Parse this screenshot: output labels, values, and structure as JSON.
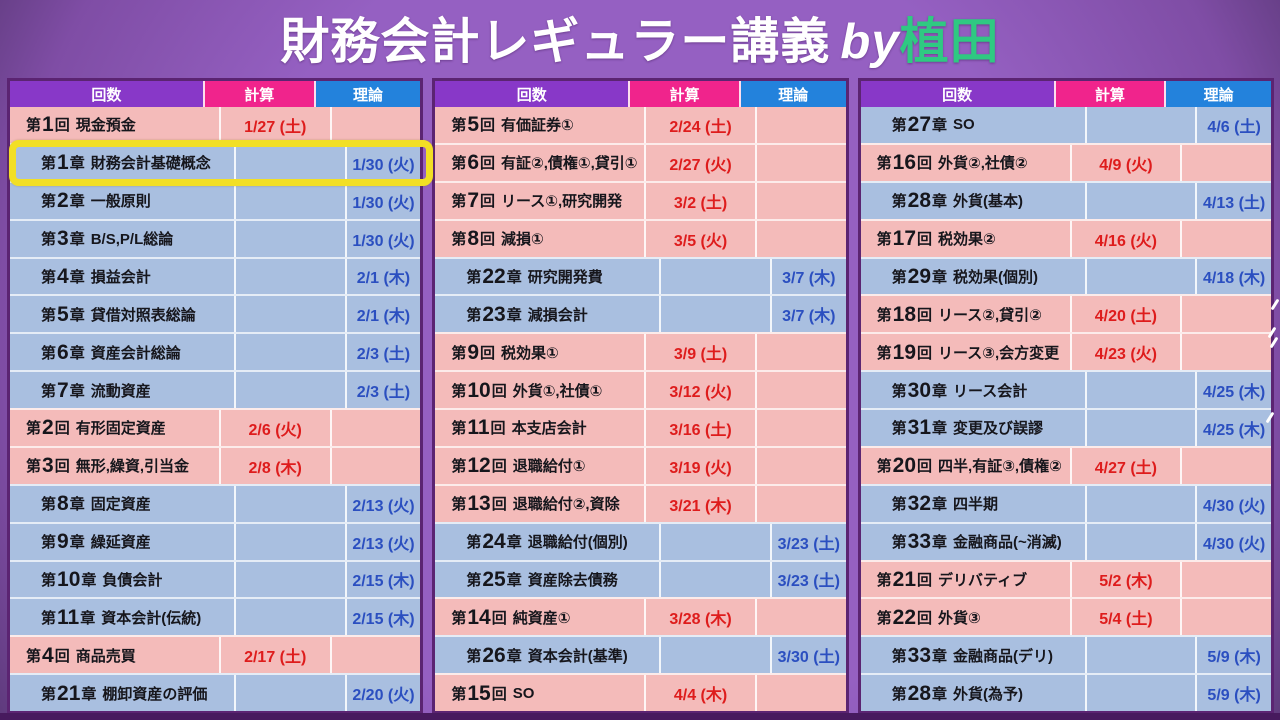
{
  "title": {
    "main": "財務会計レギュラー講義",
    "by": "by",
    "accent": "植田",
    "accent_color": "#2FC982"
  },
  "columns": {
    "session": "回数",
    "calc": "計算",
    "theory": "理論"
  },
  "colors": {
    "header_session_bg": "#8838C8",
    "header_calc_bg": "#F0248C",
    "header_theory_bg": "#2382DC",
    "row_calc_bg": "#F4BBBA",
    "row_theory_bg": "#A9BFE0",
    "calc_date_text": "#DE1C1C",
    "theory_date_text": "#2B4FC0",
    "highlight_border": "#F2DF25",
    "table_border": "#5B2472",
    "background": "#9560C2"
  },
  "highlight": {
    "table": 0,
    "row": 1
  },
  "tables": [
    {
      "rows": [
        {
          "label": "第1回 現金預金",
          "calc": "1/27 (土)",
          "theory": ""
        },
        {
          "label": "第1章 財務会計基礎概念",
          "calc": "",
          "theory": "1/30 (火)"
        },
        {
          "label": "第2章 一般原則",
          "calc": "",
          "theory": "1/30 (火)"
        },
        {
          "label": "第3章 B/S,P/L総論",
          "calc": "",
          "theory": "1/30 (火)"
        },
        {
          "label": "第4章 損益会計",
          "calc": "",
          "theory": "2/1 (木)"
        },
        {
          "label": "第5章 貸借対照表総論",
          "calc": "",
          "theory": "2/1 (木)"
        },
        {
          "label": "第6章 資産会計総論",
          "calc": "",
          "theory": "2/3 (土)"
        },
        {
          "label": "第7章 流動資産",
          "calc": "",
          "theory": "2/3 (土)"
        },
        {
          "label": "第2回 有形固定資産",
          "calc": "2/6 (火)",
          "theory": ""
        },
        {
          "label": "第3回 無形,繰資,引当金",
          "calc": "2/8 (木)",
          "theory": ""
        },
        {
          "label": "第8章 固定資産",
          "calc": "",
          "theory": "2/13 (火)"
        },
        {
          "label": "第9章 繰延資産",
          "calc": "",
          "theory": "2/13 (火)"
        },
        {
          "label": "第10章 負債会計",
          "calc": "",
          "theory": "2/15 (木)"
        },
        {
          "label": "第11章 資本会計(伝統)",
          "calc": "",
          "theory": "2/15 (木)"
        },
        {
          "label": "第4回 商品売買",
          "calc": "2/17 (土)",
          "theory": ""
        },
        {
          "label": "第21章 棚卸資産の評価",
          "calc": "",
          "theory": "2/20 (火)"
        }
      ]
    },
    {
      "rows": [
        {
          "label": "第5回 有価証券①",
          "calc": "2/24 (土)",
          "theory": ""
        },
        {
          "label": "第6回 有証②,債権①,貸引①",
          "calc": "2/27 (火)",
          "theory": ""
        },
        {
          "label": "第7回 リース①,研究開発",
          "calc": "3/2 (土)",
          "theory": ""
        },
        {
          "label": "第8回 減損①",
          "calc": "3/5 (火)",
          "theory": ""
        },
        {
          "label": "第22章 研究開発費",
          "calc": "",
          "theory": "3/7 (木)"
        },
        {
          "label": "第23章 減損会計",
          "calc": "",
          "theory": "3/7 (木)"
        },
        {
          "label": "第9回 税効果①",
          "calc": "3/9 (土)",
          "theory": ""
        },
        {
          "label": "第10回 外貨①,社債①",
          "calc": "3/12 (火)",
          "theory": ""
        },
        {
          "label": "第11回 本支店会計",
          "calc": "3/16 (土)",
          "theory": ""
        },
        {
          "label": "第12回 退職給付①",
          "calc": "3/19 (火)",
          "theory": ""
        },
        {
          "label": "第13回 退職給付②,資除",
          "calc": "3/21 (木)",
          "theory": ""
        },
        {
          "label": "第24章 退職給付(個別)",
          "calc": "",
          "theory": "3/23 (土)"
        },
        {
          "label": "第25章 資産除去債務",
          "calc": "",
          "theory": "3/23 (土)"
        },
        {
          "label": "第14回 純資産①",
          "calc": "3/28 (木)",
          "theory": ""
        },
        {
          "label": "第26章 資本会計(基準)",
          "calc": "",
          "theory": "3/30 (土)"
        },
        {
          "label": "第15回 SO",
          "calc": "4/4 (木)",
          "theory": ""
        }
      ]
    },
    {
      "rows": [
        {
          "label": "第27章 SO",
          "calc": "",
          "theory": "4/6 (土)"
        },
        {
          "label": "第16回 外貨②,社債②",
          "calc": "4/9 (火)",
          "theory": ""
        },
        {
          "label": "第28章 外貨(基本)",
          "calc": "",
          "theory": "4/13 (土)"
        },
        {
          "label": "第17回 税効果②",
          "calc": "4/16 (火)",
          "theory": ""
        },
        {
          "label": "第29章 税効果(個別)",
          "calc": "",
          "theory": "4/18 (木)"
        },
        {
          "label": "第18回 リース②,貸引②",
          "calc": "4/20 (土)",
          "theory": ""
        },
        {
          "label": "第19回 リース③,会方変更",
          "calc": "4/23 (火)",
          "theory": ""
        },
        {
          "label": "第30章 リース会計",
          "calc": "",
          "theory": "4/25 (木)"
        },
        {
          "label": "第31章 変更及び誤謬",
          "calc": "",
          "theory": "4/25 (木)"
        },
        {
          "label": "第20回 四半,有証③,債権②",
          "calc": "4/27 (土)",
          "theory": ""
        },
        {
          "label": "第32章 四半期",
          "calc": "",
          "theory": "4/30 (火)"
        },
        {
          "label": "第33章 金融商品(~消滅)",
          "calc": "",
          "theory": "4/30 (火)"
        },
        {
          "label": "第21回 デリバティブ",
          "calc": "5/2 (木)",
          "theory": ""
        },
        {
          "label": "第22回 外貨③",
          "calc": "5/4 (土)",
          "theory": ""
        },
        {
          "label": "第33章 金融商品(デリ)",
          "calc": "",
          "theory": "5/9 (木)"
        },
        {
          "label": "第28章 外貨(為予)",
          "calc": "",
          "theory": "5/9 (木)"
        }
      ]
    }
  ]
}
